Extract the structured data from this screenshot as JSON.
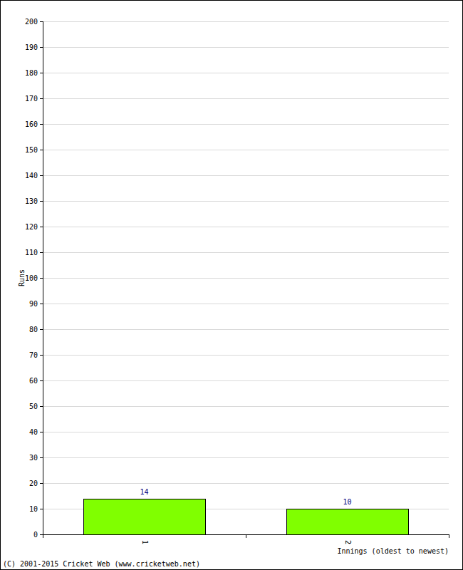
{
  "chart_data": {
    "type": "bar",
    "categories": [
      "1",
      "2"
    ],
    "values": [
      14,
      10
    ],
    "color": "#80ff00",
    "x_label": "Innings (oldest to newest)",
    "y_label": "Runs",
    "ylim": [
      0,
      200
    ],
    "yticks": [
      0,
      10,
      20,
      30,
      40,
      50,
      60,
      70,
      80,
      90,
      100,
      110,
      120,
      130,
      140,
      150,
      160,
      170,
      180,
      190,
      200
    ],
    "grid": true,
    "data_labels": true,
    "annotations": [
      "(C) 2001-2015 Cricket Web (www.cricketweb.net)"
    ]
  }
}
